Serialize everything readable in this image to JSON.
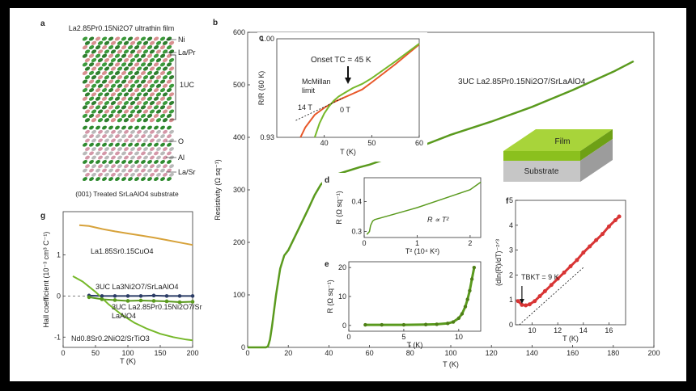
{
  "panels": {
    "a": {
      "label": "a",
      "title": "La2.85Pr0.15Ni2O7 ultrathin film",
      "labels_right": [
        "Ni",
        "La/Pr",
        "1UC",
        "O",
        "Al",
        "La/Sr"
      ],
      "caption": "(001) Treated SrLaAlO4 substrate"
    },
    "b": {
      "label": "b"
    },
    "c": {
      "label": "c"
    },
    "d": {
      "label": "d"
    },
    "e": {
      "label": "e"
    },
    "f": {
      "label": "f"
    },
    "g": {
      "label": "g"
    }
  },
  "colors": {
    "green": "#5a9a1e",
    "light_green": "#76b82a",
    "orange": "#e8582a",
    "gold": "#d7a23a",
    "dark_blue": "#2b3c66",
    "red": "#d83535"
  },
  "chart_data": [
    {
      "id": "b",
      "type": "line",
      "title": "",
      "xlabel": "T (K)",
      "ylabel": "Resistivity (Ω sq⁻¹)",
      "xlim": [
        0,
        200
      ],
      "ylim": [
        0,
        600
      ],
      "xticks": [
        0,
        20,
        40,
        60,
        80,
        100,
        120,
        140,
        160,
        180,
        200
      ],
      "yticks": [
        0,
        100,
        200,
        300,
        400,
        500,
        600
      ],
      "series": [
        {
          "name": "3UC La2.85Pr0.15Ni2O7/SrLaAlO4",
          "x": [
            0,
            9,
            10,
            11,
            12,
            14,
            16,
            18,
            20,
            25,
            30,
            33,
            36,
            38,
            40,
            45,
            50,
            55,
            60,
            80,
            100,
            120,
            140,
            160,
            180,
            190
          ],
          "y": [
            0,
            0,
            2,
            15,
            40,
            100,
            150,
            175,
            185,
            225,
            265,
            290,
            310,
            318,
            323,
            331,
            337,
            343,
            348,
            375,
            405,
            430,
            458,
            490,
            525,
            545
          ]
        }
      ],
      "legend": [
        "3UC La2.85Pr0.15Ni2O7/SrLaAlO4"
      ],
      "inset_diagram": {
        "top_layer": "Film",
        "bottom_layer": "Substrate"
      }
    },
    {
      "id": "c",
      "type": "line",
      "xlabel": "T (K)",
      "ylabel": "R/R (60 K)",
      "xlim": [
        30,
        60
      ],
      "ylim": [
        0.93,
        1.0
      ],
      "xticks": [
        40,
        50,
        60
      ],
      "yticks_labels": [
        "0.93",
        "1.00"
      ],
      "series": [
        {
          "name": "0 T",
          "x": [
            38,
            39,
            40,
            41,
            42,
            43,
            44,
            45,
            46,
            48,
            50,
            55,
            60
          ],
          "y": [
            0.93,
            0.94,
            0.947,
            0.952,
            0.956,
            0.959,
            0.961,
            0.963,
            0.965,
            0.968,
            0.972,
            0.984,
            0.9965
          ]
        },
        {
          "name": "14 T",
          "x": [
            35,
            36,
            38,
            40,
            42,
            44,
            46,
            48,
            50,
            55,
            60
          ],
          "y": [
            0.93,
            0.937,
            0.946,
            0.951,
            0.955,
            0.958,
            0.961,
            0.964,
            0.969,
            0.982,
            0.996
          ]
        }
      ],
      "annotations": [
        "Onset TC = 45 K",
        "McMillan limit",
        "14 T",
        "0 T"
      ]
    },
    {
      "id": "d",
      "type": "line",
      "xlabel": "T² (10⁴ K²)",
      "ylabel": "R (Ω sq⁻¹)",
      "xlim": [
        0,
        2.2
      ],
      "ylim": [
        0.28,
        0.48
      ],
      "xticks": [
        0,
        1,
        2
      ],
      "yticks": [
        0.3,
        0.4
      ],
      "series": [
        {
          "name": "R",
          "x": [
            0.05,
            0.1,
            0.12,
            0.16,
            0.2,
            0.5,
            1.0,
            1.5,
            2.0,
            2.2
          ],
          "y": [
            0.29,
            0.3,
            0.32,
            0.335,
            0.34,
            0.355,
            0.38,
            0.41,
            0.44,
            0.465
          ]
        }
      ],
      "annotations": [
        "R ∝ T²"
      ]
    },
    {
      "id": "e",
      "type": "scatter",
      "xlabel": "T (K)",
      "ylabel": "R (Ω sq⁻¹)",
      "xlim": [
        0,
        12
      ],
      "ylim": [
        -2,
        22
      ],
      "xticks": [
        0,
        5,
        10
      ],
      "yticks": [
        0,
        10,
        20
      ],
      "series": [
        {
          "name": "R",
          "x": [
            1.5,
            3,
            5,
            7,
            8,
            9,
            9.5,
            10,
            10.3,
            10.6,
            10.8,
            11,
            11.2,
            11.4
          ],
          "y": [
            0.2,
            0.2,
            0.2,
            0.3,
            0.4,
            0.7,
            1.2,
            2.5,
            4,
            6.5,
            9,
            12,
            16,
            20
          ]
        }
      ]
    },
    {
      "id": "f",
      "type": "scatter",
      "xlabel": "T (K)",
      "ylabel": "(dln(R)/dT)⁻²ᐟ³",
      "xlim": [
        8.7,
        17.3
      ],
      "ylim": [
        0,
        5
      ],
      "xticks": [
        10,
        12,
        14,
        16
      ],
      "yticks": [
        0,
        1,
        2,
        3,
        4,
        5
      ],
      "series": [
        {
          "name": "data",
          "x": [
            8.9,
            9.2,
            9.5,
            9.8,
            10.2,
            10.6,
            11,
            11.5,
            12,
            12.5,
            13,
            13.5,
            14,
            14.5,
            15,
            15.5,
            16,
            16.5,
            16.8
          ],
          "y": [
            0.95,
            0.8,
            0.78,
            0.82,
            0.95,
            1.15,
            1.35,
            1.6,
            1.85,
            2.1,
            2.35,
            2.6,
            2.9,
            3.15,
            3.4,
            3.65,
            3.95,
            4.2,
            4.35
          ]
        },
        {
          "name": "fit",
          "x": [
            9.0,
            14.0
          ],
          "y": [
            0,
            2.3
          ]
        }
      ],
      "annotations": [
        "TBKT = 9 K"
      ]
    },
    {
      "id": "g",
      "type": "line",
      "xlabel": "T (K)",
      "ylabel": "Hall coefficient (10⁻³ cm³ C⁻¹)",
      "xlim": [
        0,
        200
      ],
      "ylim": [
        -1.25,
        2.05
      ],
      "xticks": [
        0,
        50,
        100,
        150,
        200
      ],
      "yticks": [
        -1,
        0,
        1
      ],
      "series": [
        {
          "name": "La1.85Sr0.15CuO4",
          "x": [
            25,
            40,
            60,
            80,
            100,
            120,
            140,
            160,
            180,
            200
          ],
          "y": [
            1.72,
            1.7,
            1.63,
            1.57,
            1.52,
            1.47,
            1.42,
            1.36,
            1.3,
            1.24
          ]
        },
        {
          "name": "3UC La3Ni2O7/SrLaAlO4",
          "x": [
            40,
            60,
            80,
            100,
            120,
            140,
            160,
            180,
            200
          ],
          "y": [
            0.01,
            0,
            0,
            0,
            0,
            0.01,
            0,
            0,
            0
          ]
        },
        {
          "name": "3UC La2.85Pr0.15Ni2O7/SrLaAlO4",
          "x": [
            40,
            60,
            80,
            100,
            120,
            140,
            160,
            180,
            200
          ],
          "y": [
            -0.03,
            -0.08,
            -0.1,
            -0.12,
            -0.11,
            -0.12,
            -0.13,
            -0.15,
            -0.14
          ]
        },
        {
          "name": "Nd0.8Sr0.2NiO2/SrTiO3",
          "x": [
            15,
            30,
            50,
            70,
            90,
            110,
            130,
            150,
            170,
            190,
            200
          ],
          "y": [
            0.48,
            0.35,
            0.1,
            -0.2,
            -0.45,
            -0.65,
            -0.8,
            -0.92,
            -1.0,
            -1.06,
            -1.08
          ]
        }
      ],
      "legend": [
        "La1.85Sr0.15CuO4",
        "3UC La3Ni2O7/SrLaAlO4",
        "3UC La2.85Pr0.15Ni2O7/SrLaAlO4",
        "Nd0.8Sr0.2NiO2/SrTiO3"
      ]
    }
  ]
}
